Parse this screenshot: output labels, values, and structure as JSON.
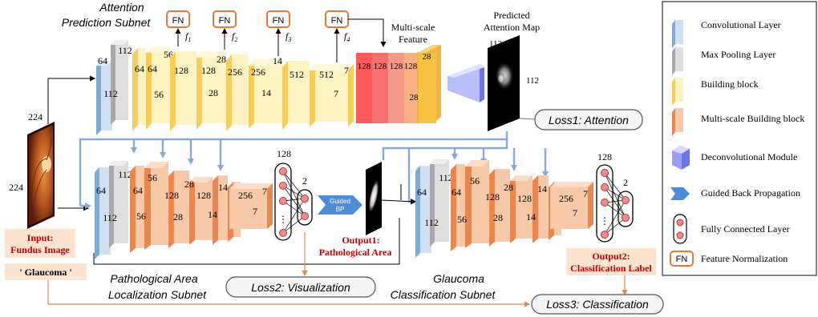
{
  "colors": {
    "conv_light": "#cfe0f3",
    "conv_dark": "#7fa9d6",
    "pool_light": "#dedede",
    "pool_dark": "#a8a8a8",
    "build_light": "#fff3c4",
    "build_dark": "#f3cf5a",
    "ms_light": "#f7c9a8",
    "ms_dark": "#e8874f",
    "arrow_blue": "#8aa9d9",
    "arrow_orange": "#d98a4a",
    "red_text": "#c00000",
    "label_fill": "#fbe3cf",
    "fn_border": "#e07b39"
  },
  "attention_subnet": {
    "title_line1": "Attention",
    "title_line2": "Prediction Subnet",
    "labels": {
      "c64": "64",
      "c112a": "112",
      "c112b": "112",
      "b56a": "56",
      "b64": "64",
      "b56b": "56",
      "b128a": "128",
      "b128b": "128",
      "b28a": "28",
      "b28b": "28",
      "b256a": "256",
      "b256b": "256",
      "b14a": "14",
      "b14b": "14",
      "b512a": "512",
      "b512b": "512",
      "b7a": "7",
      "b7b": "7"
    },
    "fn_label": "FN",
    "features": [
      "f",
      "f",
      "f",
      "f"
    ],
    "feature_subs": [
      "1",
      "2",
      "3",
      "4"
    ],
    "multiscale_line1": "Multi-scale",
    "multiscale_line2": "Feature",
    "ms_labels": [
      "128",
      "128",
      "128",
      "128",
      "28",
      "28"
    ],
    "map_title_line1": "Predicted",
    "map_title_line2": "Attention Map",
    "map_112a": "112",
    "map_112b": "112",
    "loss1": "Loss1: Attention"
  },
  "input": {
    "size_top": "224",
    "size_left": "224",
    "label_line1": "Input:",
    "label_line2": "Fundus Image",
    "class_label": "' Glaucoma '"
  },
  "localization_subnet": {
    "title_line1": "Pathological Area",
    "title_line2": "Localization Subnet",
    "labels": {
      "c64": "64",
      "c112a": "112",
      "c112b": "112",
      "b56a": "56",
      "b64": "64",
      "b56b": "56",
      "b128": "128",
      "b28a": "28",
      "b28b": "28",
      "b128b": "128",
      "b14a": "14",
      "b14b": "14",
      "b256": "256",
      "b7": "7"
    },
    "fc_128": "128",
    "fc_2": "2",
    "fc_dots": "⋮",
    "guided_line1": "Guided",
    "guided_line2": "BP",
    "output_line1": "Output1:",
    "output_line2": "Pathological Area",
    "loss2": "Loss2: Visualization"
  },
  "classification_subnet": {
    "title_line1": "Glaucoma",
    "title_line2": "Classification Subnet",
    "labels": {
      "c64": "64",
      "c112a": "112",
      "c112b": "112",
      "b56a": "56",
      "b64": "64",
      "b56b": "56",
      "b128": "128",
      "b28a": "28",
      "b28b": "28",
      "b128b": "128",
      "b14a": "14",
      "b14b": "14",
      "b256": "256",
      "b7a": "7",
      "b7b": "7"
    },
    "fc_128": "128",
    "fc_2": "2",
    "fc_dots": "⋮",
    "output_line1": "Output2:",
    "output_line2": "Classification Label",
    "loss3": "Loss3: Classification"
  },
  "legend": {
    "items": [
      {
        "label": "Convolutional Layer",
        "icon": "conv-layer-icon"
      },
      {
        "label": "Max Pooling Layer",
        "icon": "max-pooling-icon"
      },
      {
        "label": "Building block",
        "icon": "building-block-icon"
      },
      {
        "label": "Multi-scale Building block",
        "icon": "multiscale-block-icon"
      },
      {
        "label": "Deconvolutional Module",
        "icon": "deconv-module-icon"
      },
      {
        "label": "Guided Back Propagation",
        "icon": "guided-bp-arrow-icon"
      },
      {
        "label": "Fully Connected Layer",
        "icon": "fc-layer-icon"
      },
      {
        "label": "Feature Normalization",
        "icon": "fn-box-icon"
      }
    ],
    "fn_label": "FN"
  }
}
